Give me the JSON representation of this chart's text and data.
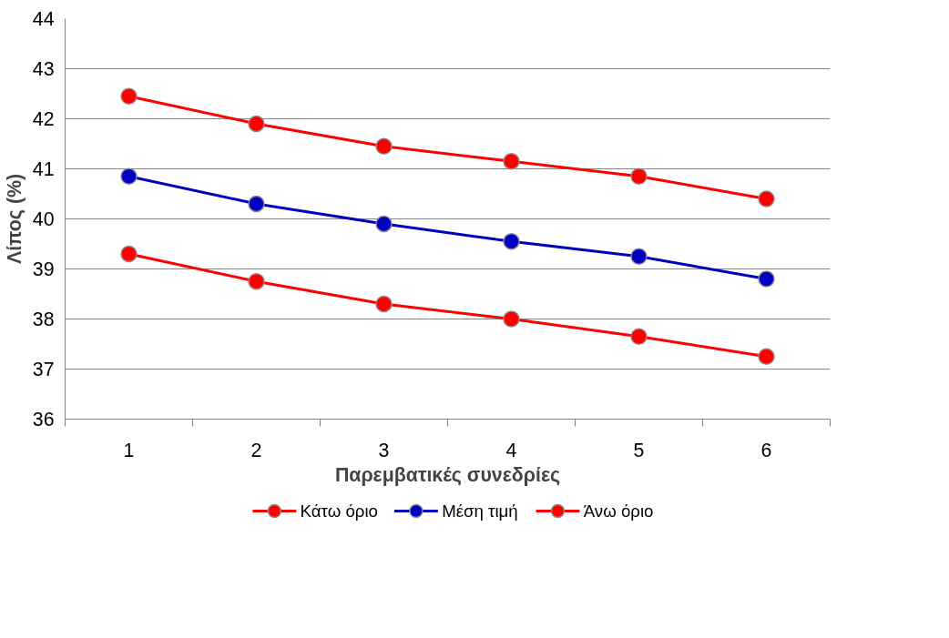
{
  "chart_data": {
    "type": "line",
    "xlabel": "Παρεμβατικές συνεδρίες",
    "ylabel": "Λίπος (%)",
    "categories": [
      "1",
      "2",
      "3",
      "4",
      "5",
      "6"
    ],
    "series": [
      {
        "name": "Κάτω όριο",
        "color": "#ff0000",
        "values": [
          39.3,
          38.75,
          38.3,
          38.0,
          37.65,
          37.25
        ]
      },
      {
        "name": "Μέση τιμή",
        "color": "#0000c0",
        "values": [
          40.85,
          40.3,
          39.9,
          39.55,
          39.25,
          38.8
        ]
      },
      {
        "name": "Άνω όριο",
        "color": "#ff0000",
        "values": [
          42.45,
          41.9,
          41.45,
          41.15,
          40.85,
          40.4
        ]
      }
    ],
    "ylim": [
      36,
      44
    ],
    "yticks": [
      36,
      37,
      38,
      39,
      40,
      41,
      42,
      43,
      44
    ],
    "grid": "y",
    "legend": "bottom",
    "marker": "circle",
    "line_style": "solid"
  }
}
